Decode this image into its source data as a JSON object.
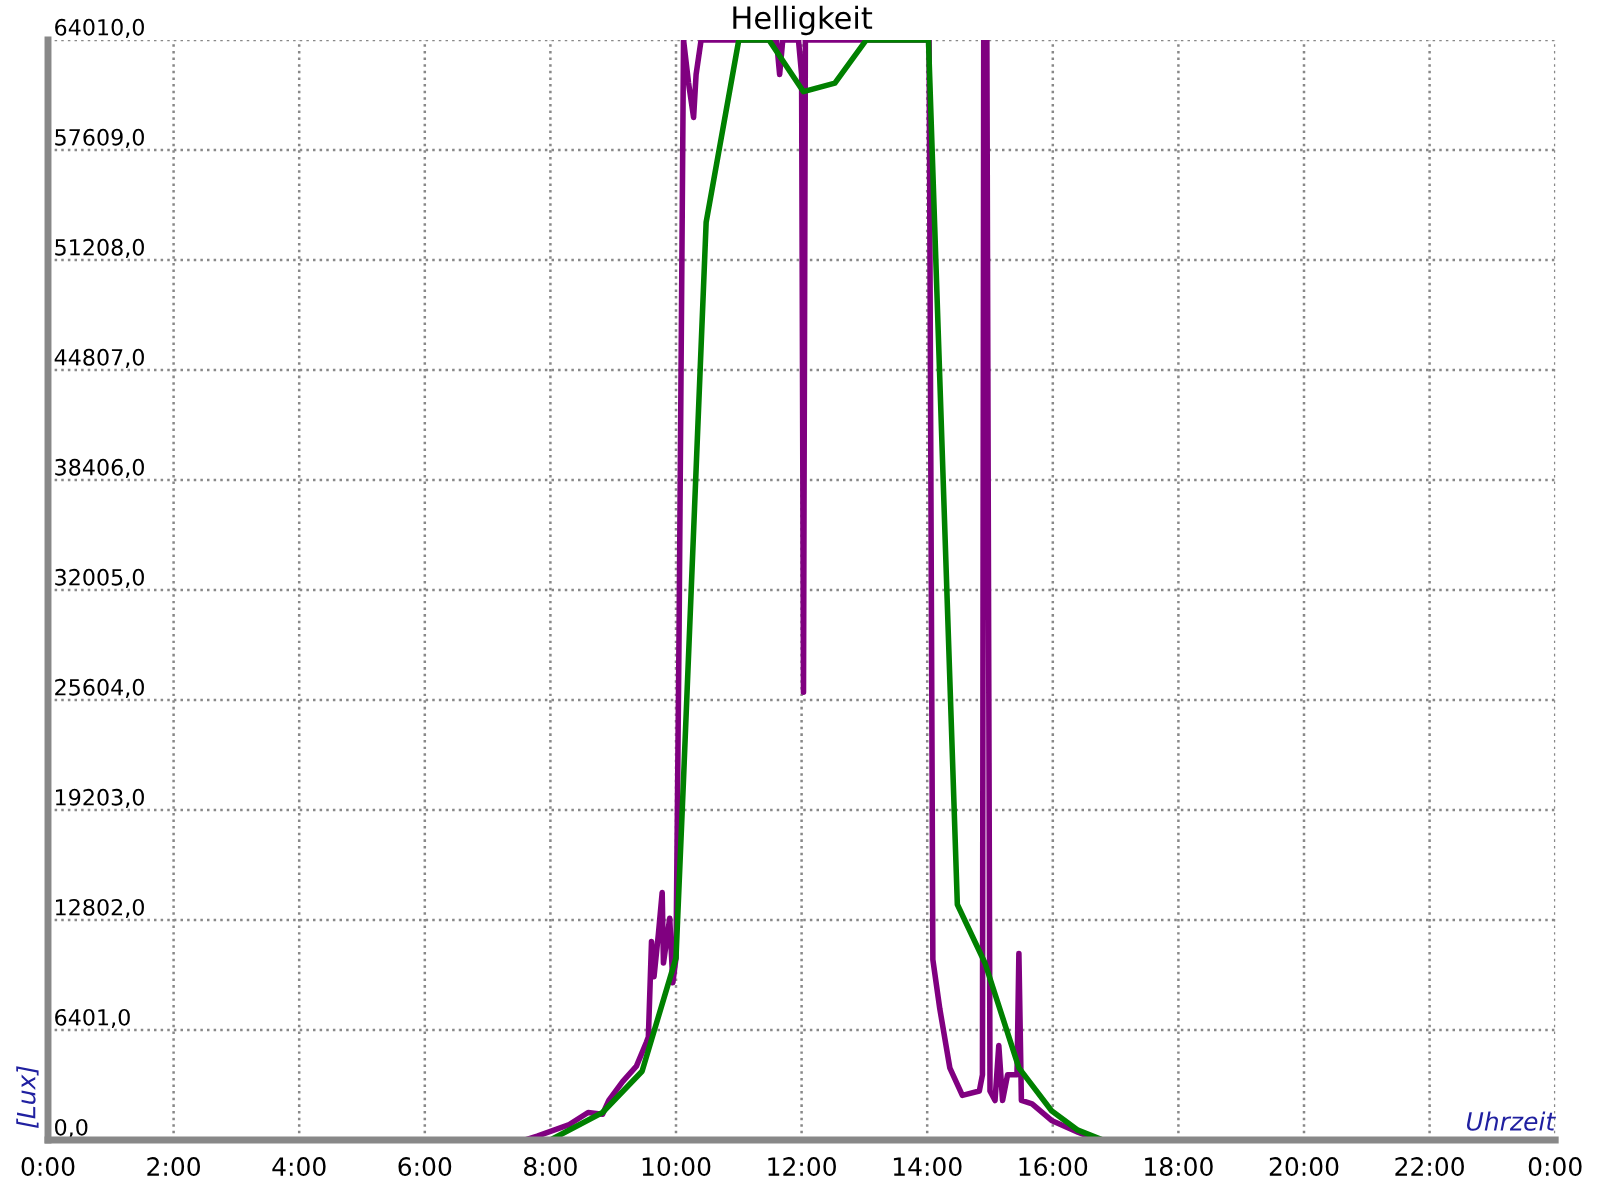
{
  "chart_data": {
    "type": "line",
    "title": "Helligkeit",
    "xlabel": "Uhrzeit",
    "ylabel": "[Lux]",
    "xlim": [
      0,
      24
    ],
    "xticks": [
      {
        "value": 0,
        "label": "0:00"
      },
      {
        "value": 2,
        "label": "2:00"
      },
      {
        "value": 4,
        "label": "4:00"
      },
      {
        "value": 6,
        "label": "6:00"
      },
      {
        "value": 8,
        "label": "8:00"
      },
      {
        "value": 10,
        "label": "10:00"
      },
      {
        "value": 12,
        "label": "12:00"
      },
      {
        "value": 14,
        "label": "14:00"
      },
      {
        "value": 16,
        "label": "16:00"
      },
      {
        "value": 18,
        "label": "18:00"
      },
      {
        "value": 20,
        "label": "20:00"
      },
      {
        "value": 22,
        "label": "22:00"
      },
      {
        "value": 24,
        "label": "0:00"
      }
    ],
    "ylim": [
      0,
      64010
    ],
    "yticks": [
      {
        "value": 0,
        "label": "0,0"
      },
      {
        "value": 6401,
        "label": "6401,0"
      },
      {
        "value": 12802,
        "label": "12802,0"
      },
      {
        "value": 19203,
        "label": "19203,0"
      },
      {
        "value": 25604,
        "label": "25604,0"
      },
      {
        "value": 32005,
        "label": "32005,0"
      },
      {
        "value": 38406,
        "label": "38406,0"
      },
      {
        "value": 44807,
        "label": "44807,0"
      },
      {
        "value": 51208,
        "label": "51208,0"
      },
      {
        "value": 57609,
        "label": "57609,0"
      },
      {
        "value": 64010,
        "label": "64010,0"
      }
    ],
    "grid": true,
    "line_style": "solid",
    "marker": "none",
    "series": [
      {
        "color": "#800080",
        "x": [
          0,
          7.6,
          7.79,
          8.3,
          8.6,
          8.83,
          8.93,
          9.15,
          9.37,
          9.53,
          9.56,
          9.61,
          9.65,
          9.72,
          9.78,
          9.8,
          9.9,
          9.95,
          10.0,
          10.05,
          10.12,
          10.2,
          10.28,
          10.32,
          10.4,
          11.6,
          11.65,
          11.7,
          11.95,
          12.0,
          12.03,
          12.06,
          12.1,
          14.03,
          14.09,
          14.2,
          14.36,
          14.56,
          14.83,
          14.88,
          14.9,
          14.95,
          15.0,
          15.08,
          15.14,
          15.2,
          15.28,
          15.36,
          15.43,
          15.46,
          15.5,
          15.67,
          15.98,
          16.4,
          16.72,
          24
        ],
        "values": [
          0,
          0,
          230,
          900,
          1600,
          1500,
          2300,
          3400,
          4300,
          5700,
          6000,
          11550,
          9500,
          12000,
          14400,
          10300,
          12900,
          9150,
          10600,
          30000,
          64010,
          61500,
          59500,
          62000,
          64010,
          64010,
          62000,
          64010,
          64010,
          62000,
          26060,
          64010,
          64010,
          64010,
          10500,
          7650,
          4200,
          2600,
          2850,
          3800,
          64010,
          64010,
          2850,
          2300,
          5500,
          2300,
          3800,
          3800,
          3800,
          10850,
          2300,
          2100,
          1140,
          450,
          0,
          0
        ]
      },
      {
        "color": "#008000",
        "x": [
          0,
          8.0,
          8.83,
          9.46,
          10.0,
          10.12,
          10.48,
          11.0,
          11.48,
          12.03,
          12.53,
          13.03,
          14.02,
          14.12,
          14.48,
          14.92,
          15.46,
          15.98,
          16.4,
          16.8,
          24
        ],
        "values": [
          0,
          0,
          1600,
          4000,
          10600,
          21000,
          53400,
          64010,
          64010,
          61000,
          61500,
          64010,
          64010,
          53100,
          13700,
          10300,
          4200,
          1700,
          570,
          0,
          0
        ]
      }
    ]
  }
}
